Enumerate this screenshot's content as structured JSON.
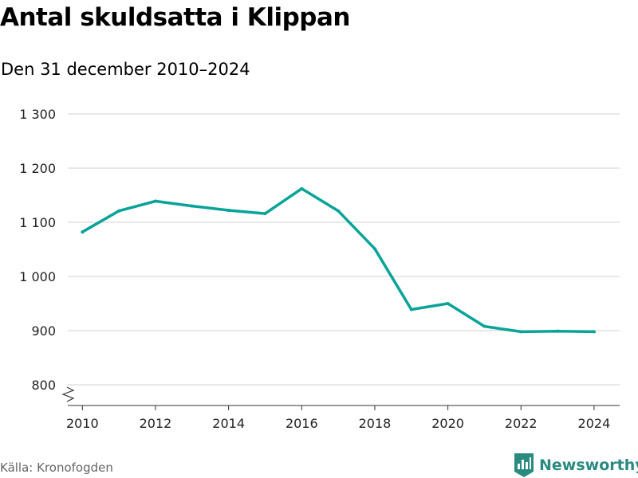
{
  "chart_data": {
    "type": "line",
    "title": "Antal skuldsatta i Klippan",
    "subtitle": "Den 31 december 2010–2024",
    "x": [
      2010,
      2011,
      2012,
      2013,
      2014,
      2015,
      2016,
      2017,
      2018,
      2019,
      2020,
      2021,
      2022,
      2023,
      2024
    ],
    "series": [
      {
        "values": [
          1082,
          1121,
          1139,
          1130,
          1122,
          1116,
          1162,
          1121,
          1051,
          939,
          950,
          908,
          898,
          899,
          898
        ]
      }
    ],
    "x_ticks": [
      2010,
      2012,
      2014,
      2016,
      2018,
      2020,
      2022,
      2024
    ],
    "x_tick_labels": [
      "2010",
      "2012",
      "2014",
      "2016",
      "2018",
      "2020",
      "2022",
      "2024"
    ],
    "y_ticks": [
      800,
      900,
      1000,
      1100,
      1200,
      1300
    ],
    "y_tick_labels": [
      "800",
      "900",
      "1 000",
      "1 100",
      "1 200",
      "1 300"
    ],
    "xlim": [
      2009.6,
      2024.7
    ],
    "ylim": [
      800,
      1300
    ],
    "y_axis_break": true,
    "grid": true,
    "xlabel": "",
    "ylabel": "",
    "line_color": "#0aa398",
    "grid_color": "#d9d9d9",
    "source": "Källa: Kronofogden"
  },
  "brand": {
    "name": "Newsworthy",
    "color": "#2a8a80"
  }
}
